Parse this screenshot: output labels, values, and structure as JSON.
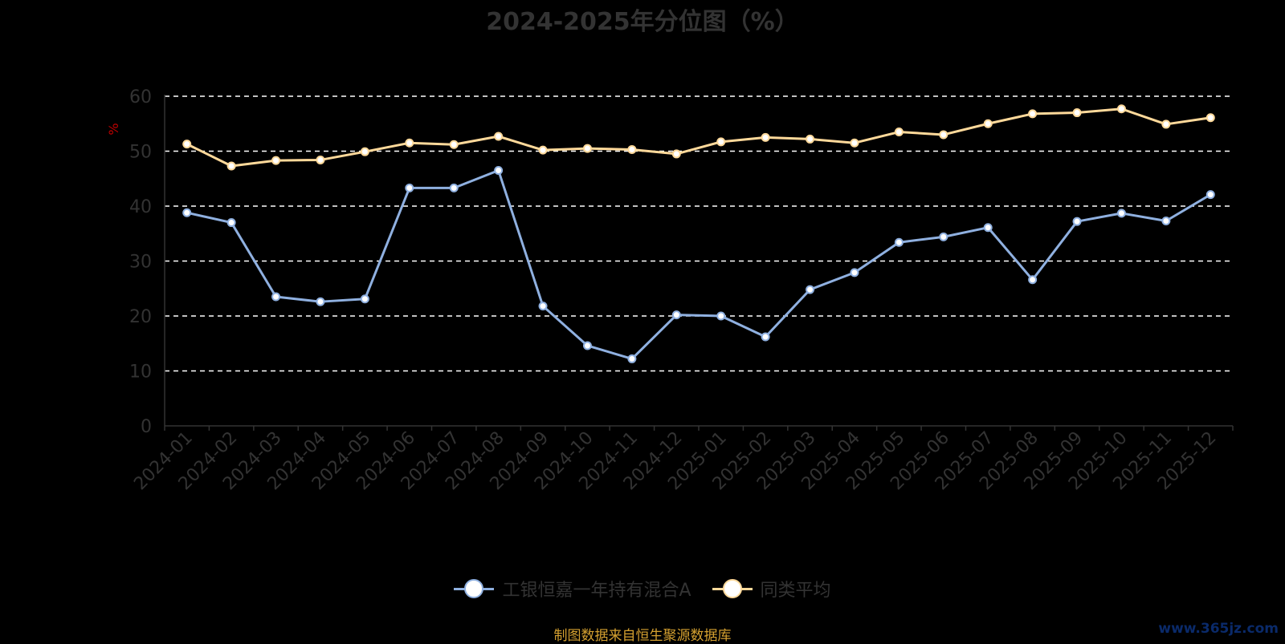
{
  "chart_data": {
    "type": "line",
    "title": "2024-2025年分位图（%）",
    "ylabel": "%",
    "xlabel": "",
    "ylim": [
      0,
      60
    ],
    "yticks": [
      0,
      10,
      20,
      30,
      40,
      50,
      60
    ],
    "grid": true,
    "legend_position": "bottom",
    "categories": [
      "2024-01",
      "2024-02",
      "2024-03",
      "2024-04",
      "2024-05",
      "2024-06",
      "2024-07",
      "2024-08",
      "2024-09",
      "2024-10",
      "2024-11",
      "2024-12",
      "2025-01",
      "2025-02",
      "2025-03",
      "2025-04",
      "2025-05",
      "2025-06",
      "2025-07",
      "2025-08",
      "2025-09",
      "2025-10",
      "2025-11",
      "2025-12"
    ],
    "series": [
      {
        "name": "工银恒嘉一年持有混合A",
        "color": "#8fb0e0",
        "values": [
          38.8,
          37.0,
          23.5,
          22.6,
          23.1,
          43.3,
          43.3,
          46.5,
          21.8,
          14.6,
          12.2,
          20.2,
          20.0,
          16.2,
          24.8,
          27.9,
          33.4,
          34.4,
          36.1,
          26.6,
          37.2,
          38.7,
          37.3,
          42.1
        ]
      },
      {
        "name": "同类平均",
        "color": "#ffd99a",
        "values": [
          51.3,
          47.3,
          48.3,
          48.4,
          49.9,
          51.5,
          51.2,
          52.7,
          50.2,
          50.5,
          50.3,
          49.5,
          51.7,
          52.5,
          52.2,
          51.5,
          53.5,
          53.0,
          55.0,
          56.8,
          57.0,
          57.7,
          54.9,
          56.1
        ]
      }
    ]
  },
  "source_text": "制图数据来自恒生聚源数据库",
  "watermark": "www.365jz.com"
}
